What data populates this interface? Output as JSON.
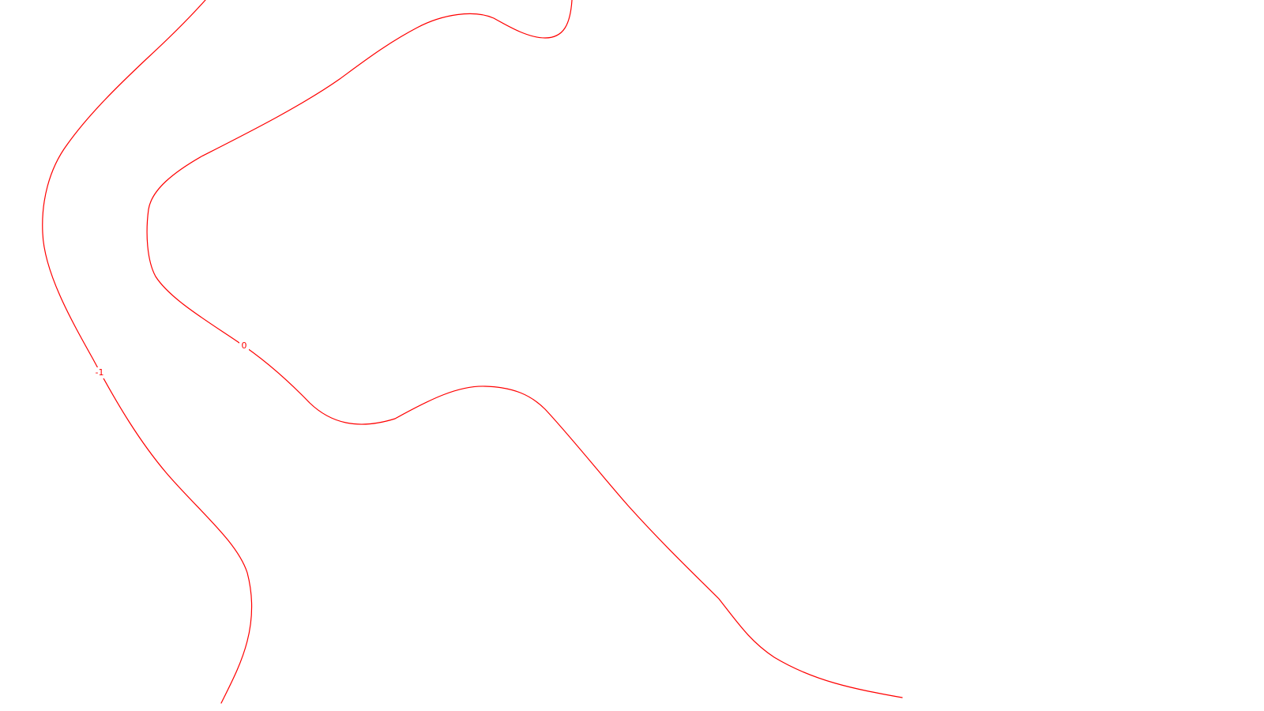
{
  "map": {
    "background_color": "#ffffff",
    "contour_color": "#ff0000",
    "contours": [
      {
        "level": "-1",
        "label": "-1"
      },
      {
        "level": "0",
        "label": "0"
      }
    ]
  }
}
